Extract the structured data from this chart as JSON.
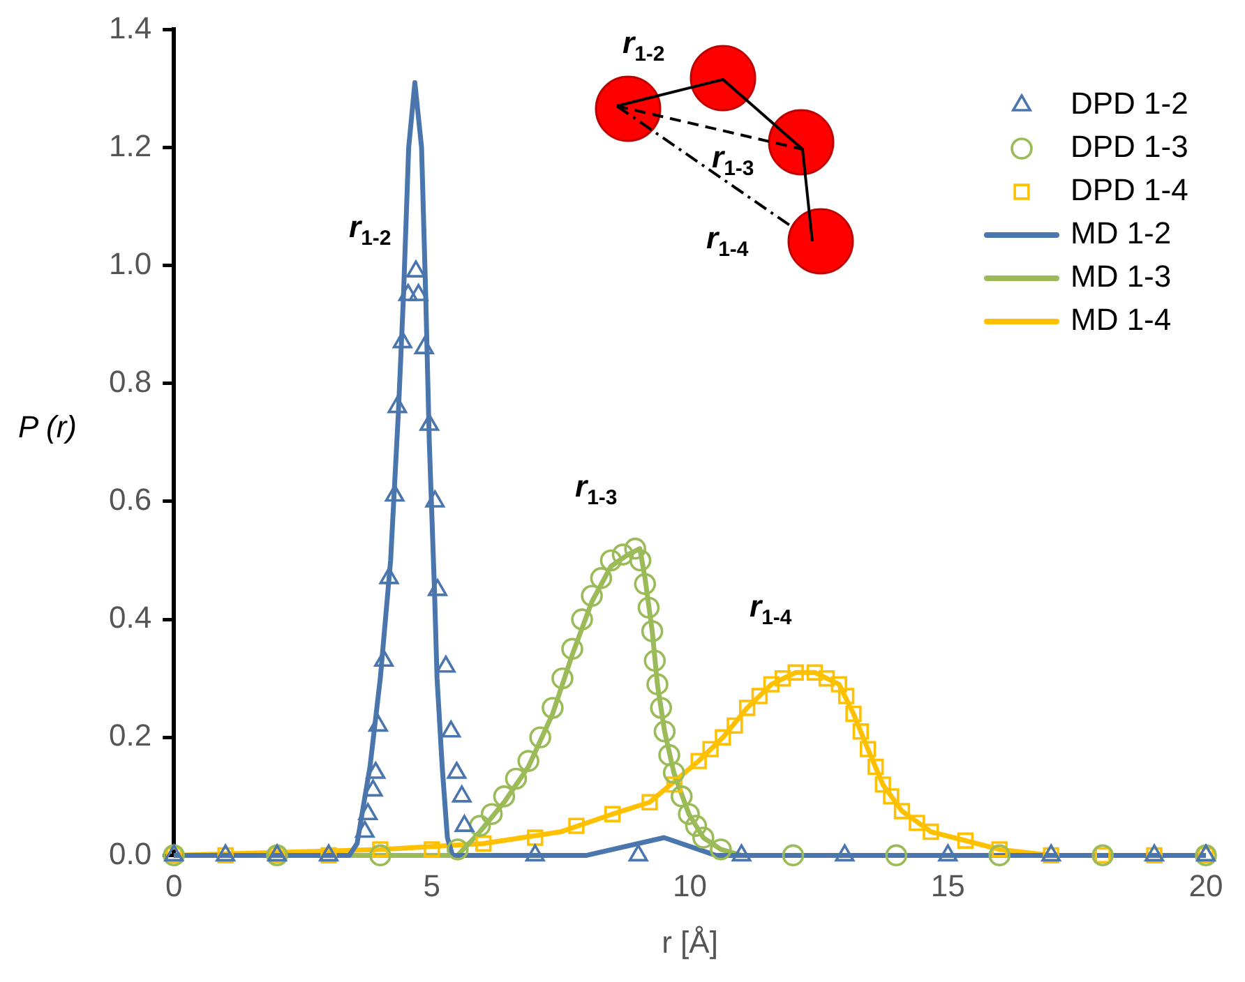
{
  "chart_data": {
    "type": "line",
    "xlabel": "r [Å]",
    "ylabel": "P (r)",
    "xlim": [
      0,
      20
    ],
    "xticks": [
      0,
      5,
      10,
      15,
      20
    ],
    "ylim": [
      0,
      1.4
    ],
    "yticks": [
      {
        "value": 0,
        "label": "0.0"
      },
      0.2,
      0.4,
      0.6,
      0.8,
      {
        "value": 1,
        "label": "1.0"
      },
      1.2,
      1.4
    ],
    "grid": false,
    "legend": "top right",
    "series": [
      {
        "name": "DPD 1-2",
        "type": "scatter",
        "marker": "triangle",
        "color": "#4a76ad",
        "x": [
          0,
          1,
          2,
          3,
          3.7,
          3.76,
          3.86,
          3.91,
          3.96,
          4.07,
          4.17,
          4.28,
          4.33,
          4.43,
          4.54,
          4.69,
          4.74,
          4.85,
          4.95,
          5.06,
          5.11,
          5.27,
          5.37,
          5.48,
          5.58,
          5.63,
          7,
          9,
          11,
          13,
          15,
          17,
          19,
          20
        ],
        "values": [
          0,
          0,
          0,
          0,
          0.04,
          0.07,
          0.11,
          0.14,
          0.22,
          0.33,
          0.47,
          0.61,
          0.76,
          0.87,
          0.95,
          0.99,
          0.95,
          0.86,
          0.73,
          0.6,
          0.45,
          0.32,
          0.21,
          0.14,
          0.1,
          0.05,
          0,
          0,
          0,
          0,
          0,
          0,
          0,
          0
        ]
      },
      {
        "name": "DPD 1-3",
        "type": "scatter",
        "marker": "circle",
        "color": "#9bbb59",
        "x": [
          0,
          2,
          4,
          5.5,
          5.93,
          6.16,
          6.4,
          6.63,
          6.87,
          7.1,
          7.34,
          7.53,
          7.72,
          7.91,
          8.1,
          8.28,
          8.47,
          8.7,
          8.94,
          9.04,
          9.13,
          9.2,
          9.27,
          9.32,
          9.37,
          9.44,
          9.51,
          9.6,
          9.69,
          9.84,
          9.98,
          10.12,
          10.26,
          10.6,
          12,
          14,
          16,
          18,
          20
        ],
        "values": [
          0,
          0,
          0,
          0.01,
          0.05,
          0.07,
          0.1,
          0.13,
          0.16,
          0.2,
          0.25,
          0.3,
          0.35,
          0.4,
          0.44,
          0.47,
          0.5,
          0.51,
          0.52,
          0.5,
          0.46,
          0.42,
          0.38,
          0.33,
          0.29,
          0.25,
          0.21,
          0.17,
          0.14,
          0.1,
          0.07,
          0.05,
          0.03,
          0.01,
          0,
          0,
          0,
          0,
          0
        ]
      },
      {
        "name": "DPD 1-4",
        "type": "scatter",
        "marker": "square",
        "color": "#ffc000",
        "x": [
          0,
          1,
          2,
          3,
          4,
          5,
          6,
          7,
          7.8,
          8.5,
          9.22,
          9.7,
          10.17,
          10.4,
          10.64,
          10.87,
          11.11,
          11.35,
          11.58,
          11.8,
          12.05,
          12.42,
          12.65,
          12.89,
          13.03,
          13.17,
          13.31,
          13.45,
          13.6,
          13.74,
          13.9,
          14.11,
          14.4,
          14.67,
          15.34,
          16,
          17,
          18,
          19,
          20
        ],
        "values": [
          0,
          0,
          0,
          0,
          0.01,
          0.01,
          0.02,
          0.03,
          0.05,
          0.07,
          0.09,
          0.12,
          0.16,
          0.18,
          0.2,
          0.22,
          0.25,
          0.27,
          0.29,
          0.3,
          0.31,
          0.31,
          0.3,
          0.29,
          0.27,
          0.24,
          0.21,
          0.18,
          0.15,
          0.12,
          0.1,
          0.075,
          0.055,
          0.04,
          0.025,
          0.01,
          0,
          0,
          0,
          0
        ]
      },
      {
        "name": "MD 1-2",
        "marker": "none",
        "line_style": "solid",
        "color": "#4a76ad",
        "x": [
          0,
          3.4,
          3.55,
          3.8,
          4,
          4.2,
          4.35,
          4.45,
          4.55,
          4.67,
          4.8,
          4.88,
          4.95,
          5.05,
          5.1,
          5.2,
          5.3,
          5.4,
          8,
          9.5,
          10.5,
          20
        ],
        "values": [
          0,
          0,
          0.02,
          0.15,
          0.3,
          0.5,
          0.75,
          0.95,
          1.2,
          1.31,
          1.2,
          0.95,
          0.7,
          0.45,
          0.3,
          0.15,
          0.03,
          0,
          0,
          0.03,
          0,
          0
        ]
      },
      {
        "name": "MD 1-3",
        "marker": "none",
        "line_style": "solid",
        "color": "#9bbb59",
        "x": [
          0,
          5.5,
          5.93,
          6.4,
          6.87,
          7.34,
          7.72,
          8.1,
          8.47,
          8.8,
          9.03,
          9.13,
          9.27,
          9.37,
          9.51,
          9.69,
          9.98,
          10.26,
          10.6,
          11,
          20
        ],
        "values": [
          0,
          0,
          0.04,
          0.09,
          0.15,
          0.24,
          0.34,
          0.43,
          0.49,
          0.51,
          0.52,
          0.47,
          0.38,
          0.29,
          0.21,
          0.14,
          0.07,
          0.03,
          0.01,
          0,
          0
        ]
      },
      {
        "name": "MD 1-4",
        "marker": "none",
        "line_style": "solid",
        "color": "#ffc000",
        "x": [
          0,
          4,
          6,
          7.5,
          8.5,
          9.22,
          10.17,
          10.64,
          11.11,
          11.58,
          12.05,
          12.42,
          12.89,
          13.17,
          13.45,
          13.74,
          14.11,
          14.67,
          15.34,
          16,
          17,
          20
        ],
        "values": [
          0,
          0.01,
          0.02,
          0.04,
          0.07,
          0.09,
          0.16,
          0.2,
          0.25,
          0.29,
          0.31,
          0.31,
          0.29,
          0.24,
          0.18,
          0.12,
          0.075,
          0.04,
          0.025,
          0.01,
          0,
          0
        ]
      }
    ],
    "annotations": [
      "r$_{1-2}$",
      "r$_{1-3}$",
      "r$_{1-4}$",
      "r$_{1-2}$",
      "r$_{1-3}$",
      "r$_{1-4}$"
    ]
  }
}
